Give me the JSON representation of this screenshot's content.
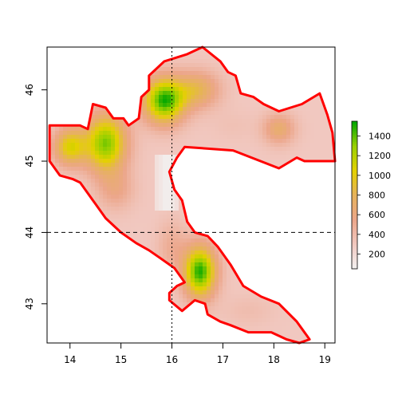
{
  "chart_data": {
    "type": "heatmap",
    "title": "",
    "xlabel": "",
    "ylabel": "",
    "xlim": [
      13.55,
      19.2
    ],
    "ylim": [
      42.45,
      46.6
    ],
    "x_ticks": [
      14,
      15,
      16,
      17,
      18,
      19
    ],
    "y_ticks": [
      43,
      44,
      45,
      46
    ],
    "x_tick_labels": [
      "14",
      "15",
      "16",
      "17",
      "18",
      "19"
    ],
    "y_tick_labels": [
      "43",
      "44",
      "45",
      "46"
    ],
    "reference_lines": {
      "vertical_x": 16,
      "horizontal_y": 44
    },
    "boundary_color": "#ff0000",
    "boundary": [
      [
        13.6,
        45.5
      ],
      [
        13.9,
        45.5
      ],
      [
        14.2,
        45.5
      ],
      [
        14.35,
        45.45
      ],
      [
        14.45,
        45.8
      ],
      [
        14.7,
        45.75
      ],
      [
        14.85,
        45.6
      ],
      [
        15.05,
        45.6
      ],
      [
        15.15,
        45.5
      ],
      [
        15.35,
        45.6
      ],
      [
        15.4,
        45.9
      ],
      [
        15.55,
        46.0
      ],
      [
        15.55,
        46.2
      ],
      [
        15.85,
        46.4
      ],
      [
        16.3,
        46.5
      ],
      [
        16.6,
        46.6
      ],
      [
        16.95,
        46.4
      ],
      [
        17.1,
        46.25
      ],
      [
        17.25,
        46.2
      ],
      [
        17.35,
        45.95
      ],
      [
        17.6,
        45.9
      ],
      [
        17.8,
        45.8
      ],
      [
        18.1,
        45.7
      ],
      [
        18.55,
        45.8
      ],
      [
        18.9,
        45.95
      ],
      [
        19.05,
        45.65
      ],
      [
        19.15,
        45.4
      ],
      [
        19.2,
        45.0
      ],
      [
        18.9,
        45.0
      ],
      [
        18.6,
        45.0
      ],
      [
        18.45,
        45.05
      ],
      [
        18.1,
        44.9
      ],
      [
        17.2,
        45.15
      ],
      [
        16.25,
        45.2
      ],
      [
        16.1,
        45.05
      ],
      [
        15.95,
        44.85
      ],
      [
        16.05,
        44.6
      ],
      [
        16.2,
        44.45
      ],
      [
        16.3,
        44.15
      ],
      [
        16.45,
        44.0
      ],
      [
        16.7,
        43.95
      ],
      [
        16.9,
        43.8
      ],
      [
        17.15,
        43.55
      ],
      [
        17.4,
        43.25
      ],
      [
        17.75,
        43.1
      ],
      [
        18.1,
        43.0
      ],
      [
        18.45,
        42.75
      ],
      [
        18.7,
        42.5
      ],
      [
        18.5,
        42.45
      ],
      [
        18.25,
        42.5
      ],
      [
        17.95,
        42.6
      ],
      [
        17.5,
        42.6
      ],
      [
        17.15,
        42.7
      ],
      [
        16.95,
        42.75
      ],
      [
        16.7,
        42.85
      ],
      [
        16.65,
        43.0
      ],
      [
        16.45,
        43.05
      ],
      [
        16.2,
        42.9
      ],
      [
        15.95,
        43.05
      ],
      [
        15.95,
        43.15
      ],
      [
        16.1,
        43.25
      ],
      [
        16.25,
        43.3
      ],
      [
        16.05,
        43.5
      ],
      [
        15.75,
        43.65
      ],
      [
        15.55,
        43.75
      ],
      [
        15.3,
        43.85
      ],
      [
        15.0,
        44.0
      ],
      [
        14.7,
        44.2
      ],
      [
        14.45,
        44.45
      ],
      [
        14.2,
        44.7
      ],
      [
        14.05,
        44.75
      ],
      [
        13.8,
        44.8
      ],
      [
        13.6,
        45.0
      ]
    ],
    "hotspots": [
      {
        "x": 15.85,
        "y": 45.85,
        "value": 1500,
        "sx": 0.28,
        "sy": 0.22
      },
      {
        "x": 14.7,
        "y": 45.25,
        "value": 1350,
        "sx": 0.28,
        "sy": 0.28
      },
      {
        "x": 14.0,
        "y": 45.2,
        "value": 1050,
        "sx": 0.22,
        "sy": 0.18
      },
      {
        "x": 16.55,
        "y": 43.45,
        "value": 1500,
        "sx": 0.22,
        "sy": 0.25
      },
      {
        "x": 16.5,
        "y": 46.0,
        "value": 800,
        "sx": 0.3,
        "sy": 0.18
      },
      {
        "x": 14.9,
        "y": 44.6,
        "value": 550,
        "sx": 0.25,
        "sy": 0.2
      },
      {
        "x": 18.1,
        "y": 45.45,
        "value": 700,
        "sx": 0.22,
        "sy": 0.15
      },
      {
        "x": 17.2,
        "y": 45.5,
        "value": 350,
        "sx": 0.3,
        "sy": 0.15
      },
      {
        "x": 16.0,
        "y": 43.8,
        "value": 500,
        "sx": 0.2,
        "sy": 0.25
      },
      {
        "x": 17.5,
        "y": 42.9,
        "value": 380,
        "sx": 0.35,
        "sy": 0.15
      }
    ],
    "base_value": 300,
    "colorbar": {
      "min": 50,
      "max": 1550,
      "ticks": [
        200,
        400,
        600,
        800,
        1000,
        1200,
        1400
      ],
      "tick_labels": [
        "200",
        "400",
        "600",
        "800",
        "1000",
        "1200",
        "1400"
      ],
      "palette": [
        "#f2f2f2",
        "#f1c8c0",
        "#eca68a",
        "#e6b25c",
        "#e4d100",
        "#9ad000",
        "#00a600"
      ]
    }
  }
}
